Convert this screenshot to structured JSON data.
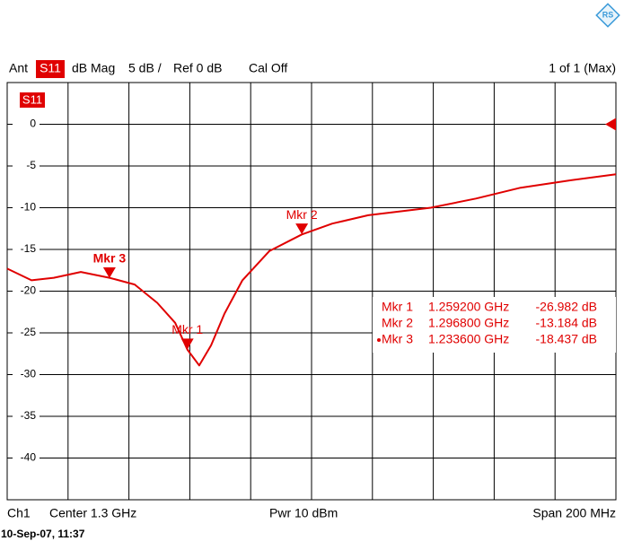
{
  "header": {
    "antenna": "Ant",
    "trace": "S11",
    "format": "dB Mag",
    "scale": "5 dB /",
    "reference": "Ref 0 dB",
    "calibration": "Cal Off",
    "sweep": "1 of 1 (Max)"
  },
  "footer": {
    "channel": "Ch1",
    "center": "Center 1.3 GHz",
    "power": "Pwr 10 dBm",
    "span": "Span 200 MHz",
    "timestamp": "10-Sep-07, 11:37"
  },
  "chart_data": {
    "type": "line",
    "trace_label": "S11",
    "color": "#e00000",
    "ref_level": 0,
    "x": [
      1.2,
      1.208,
      1.2153,
      1.2242,
      1.2336,
      1.2419,
      1.2493,
      1.2552,
      1.2592,
      1.2631,
      1.267,
      1.2714,
      1.2773,
      1.2861,
      1.2968,
      1.3068,
      1.3186,
      1.3392,
      1.354,
      1.3687,
      1.3835,
      1.4
    ],
    "values": [
      -17.3,
      -18.7,
      -18.4,
      -17.7,
      -18.4,
      -19.2,
      -21.4,
      -23.8,
      -27.0,
      -28.9,
      -26.5,
      -22.7,
      -18.7,
      -15.2,
      -13.2,
      -11.9,
      -10.9,
      -10.0,
      -8.9,
      -7.6,
      -6.8,
      -6.0
    ],
    "xlim": [
      1.2,
      1.4
    ],
    "xticks": [
      1.2,
      1.22,
      1.24,
      1.26,
      1.28,
      1.3,
      1.32,
      1.34,
      1.36,
      1.38,
      1.4
    ],
    "ylim": [
      -45,
      5
    ],
    "yticks": [
      0,
      -5,
      -10,
      -15,
      -20,
      -25,
      -30,
      -35,
      -40
    ],
    "grid": true,
    "markers": [
      {
        "name": "Mkr 1",
        "x": 1.2592,
        "x_label": "1.259200 GHz",
        "y": -26.982,
        "y_label": "-26.982 dB"
      },
      {
        "name": "Mkr 2",
        "x": 1.2968,
        "x_label": "1.296800 GHz",
        "y": -13.184,
        "y_label": "-13.184 dB"
      },
      {
        "name": "Mkr 3",
        "x": 1.2336,
        "x_label": "1.233600 GHz",
        "y": -18.437,
        "y_label": "-18.437 dB"
      }
    ],
    "active_marker": 2
  }
}
